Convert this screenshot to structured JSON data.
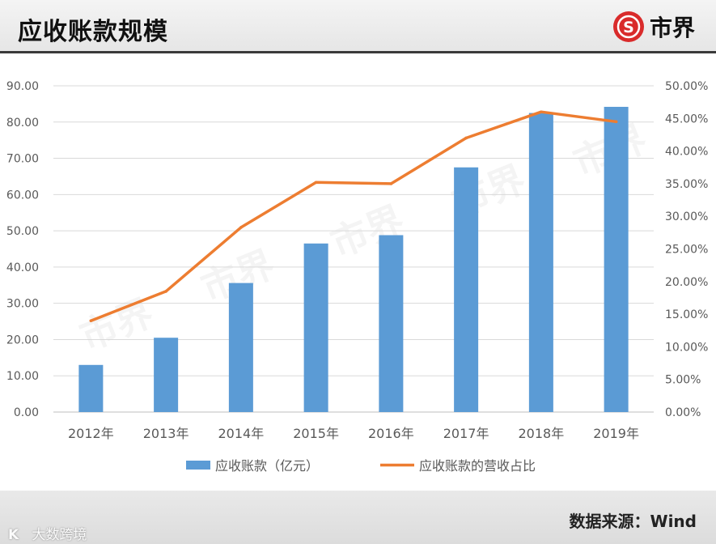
{
  "header": {
    "title": "应收账款规模",
    "brand_name": "市界",
    "brand_logo_letter": "S"
  },
  "footer": {
    "source": "数据来源：Wind",
    "credit_mark": "K",
    "credit_text": "大数跨境"
  },
  "watermark": {
    "text": "市界"
  },
  "colors": {
    "bar": "#5b9bd5",
    "line": "#ed7d31",
    "brand_red": "#d92b2b"
  },
  "chart_data": {
    "type": "bar",
    "title": "",
    "categories": [
      "2012年",
      "2013年",
      "2014年",
      "2015年",
      "2016年",
      "2017年",
      "2018年",
      "2019年"
    ],
    "series": [
      {
        "name": "应收账款（亿元）",
        "type": "bar",
        "axis": "left",
        "values": [
          13.0,
          20.5,
          35.6,
          46.5,
          48.8,
          67.5,
          82.5,
          84.2
        ]
      },
      {
        "name": "应收账款的营收占比",
        "type": "line",
        "axis": "right",
        "values": [
          0.14,
          0.185,
          0.283,
          0.352,
          0.35,
          0.42,
          0.46,
          0.445
        ]
      }
    ],
    "y_left": {
      "ylim": [
        0,
        90
      ],
      "ticks": [
        "0.00",
        "10.00",
        "20.00",
        "30.00",
        "40.00",
        "50.00",
        "60.00",
        "70.00",
        "80.00",
        "90.00"
      ]
    },
    "y_right": {
      "ylim": [
        0,
        0.5
      ],
      "ticks": [
        "0.00%",
        "5.00%",
        "10.00%",
        "15.00%",
        "20.00%",
        "25.00%",
        "30.00%",
        "35.00%",
        "40.00%",
        "45.00%",
        "50.00%"
      ]
    },
    "grid": true,
    "legend_position": "bottom"
  }
}
